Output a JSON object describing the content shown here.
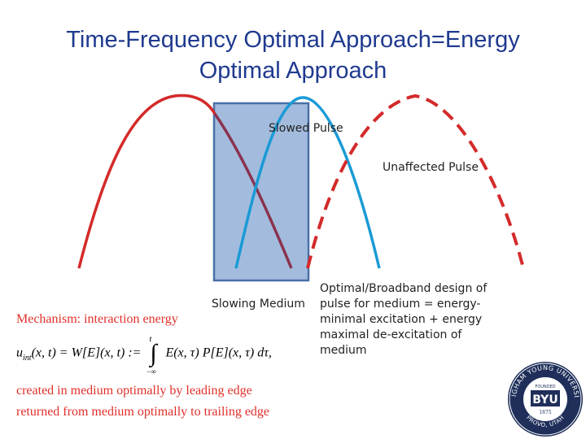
{
  "slide": {
    "title_line1": "Time-Frequency Optimal Approach=Energy",
    "title_line2": "Optimal Approach"
  },
  "diagram": {
    "slowed_pulse_label": "Slowed Pulse",
    "unaffected_pulse_label": "Unaffected Pulse",
    "slowing_medium_label": "Slowing Medium",
    "colors": {
      "leading_pulse": "#d42a2a",
      "trailing_pulse": "#8a3350",
      "slowed_pulse": "#1a9ad6",
      "unaffected_pulse": "#d42a2a",
      "medium_fill": "#a3bcdd",
      "medium_border": "#4a70a8"
    }
  },
  "description": "Optimal/Broadband design of pulse for medium = energy-minimal excitation + energy maximal de-excitation of medium",
  "mechanism": {
    "line1": "Mechanism:  interaction energy",
    "line2": "created in medium optimally by leading edge",
    "line3": "returned from medium optimally to trailing edge"
  },
  "equation": {
    "lhs": "u",
    "lhs_sub": "int",
    "lhs_args": "(x, t) = W[E](x, t) :=",
    "upper_limit": "t",
    "lower_limit": "−∞",
    "integrand": "E(x, τ) P[E](x, τ) dτ,"
  },
  "seal": {
    "top_text": "BRIGHAM YOUNG UNIVERSITY",
    "bottom_text": "PROVO, UTAH",
    "founded": "FOUNDED",
    "abbrev": "BYU",
    "year": "1875"
  }
}
